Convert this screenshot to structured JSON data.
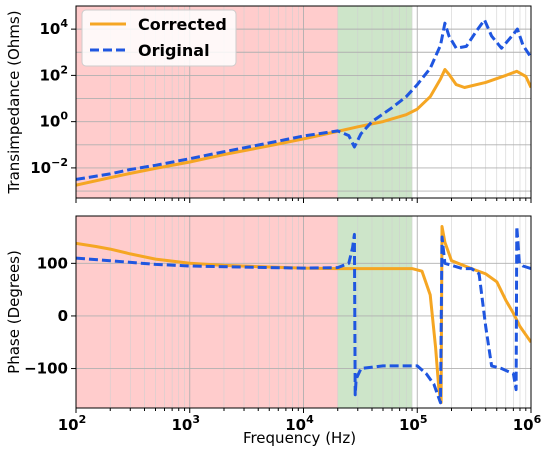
{
  "chart_data": [
    {
      "type": "line",
      "id": "magnitude",
      "xscale": "log",
      "yscale": "log",
      "xlim": [
        100,
        1000000
      ],
      "ylim": [
        0.0005,
        100000
      ],
      "xlabel": "",
      "ylabel": "Transimpedance (Ohms)",
      "grid": true,
      "legend": {
        "position": "top-left"
      },
      "bands": [
        {
          "from": 100,
          "to": 20000,
          "color": "#ffcccc"
        },
        {
          "from": 20000,
          "to": 90000,
          "color": "#cde5c9"
        }
      ],
      "yticks": [
        {
          "value": 0.01,
          "base": "10",
          "exp": "−2"
        },
        {
          "value": 1,
          "base": "10",
          "exp": "0"
        },
        {
          "value": 100,
          "base": "10",
          "exp": "2"
        },
        {
          "value": 10000,
          "base": "10",
          "exp": "4"
        }
      ],
      "series": [
        {
          "name": "Corrected",
          "color": "#f5a623",
          "dash": "solid",
          "points": [
            [
              100,
              0.0018
            ],
            [
              200,
              0.0038
            ],
            [
              300,
              0.0058
            ],
            [
              500,
              0.0095
            ],
            [
              1000,
              0.018
            ],
            [
              2000,
              0.038
            ],
            [
              5000,
              0.09
            ],
            [
              10000,
              0.18
            ],
            [
              20000,
              0.38
            ],
            [
              30000,
              0.6
            ],
            [
              50000,
              1.0
            ],
            [
              80000,
              2.0
            ],
            [
              100000,
              3.5
            ],
            [
              130000,
              12
            ],
            [
              160000,
              70
            ],
            [
              175000,
              180
            ],
            [
              190000,
              110
            ],
            [
              220000,
              40
            ],
            [
              260000,
              30
            ],
            [
              400000,
              50
            ],
            [
              600000,
              100
            ],
            [
              750000,
              150
            ],
            [
              900000,
              90
            ],
            [
              1000000,
              30
            ]
          ]
        },
        {
          "name": "Original",
          "color": "#1f56e0",
          "dash": "dashed",
          "points": [
            [
              100,
              0.0032
            ],
            [
              200,
              0.0055
            ],
            [
              300,
              0.0085
            ],
            [
              500,
              0.013
            ],
            [
              1000,
              0.025
            ],
            [
              2000,
              0.05
            ],
            [
              5000,
              0.12
            ],
            [
              10000,
              0.24
            ],
            [
              20000,
              0.4
            ],
            [
              25000,
              0.25
            ],
            [
              28000,
              0.08
            ],
            [
              32000,
              0.3
            ],
            [
              40000,
              1.0
            ],
            [
              60000,
              4.0
            ],
            [
              80000,
              12
            ],
            [
              100000,
              40
            ],
            [
              130000,
              200
            ],
            [
              160000,
              2000
            ],
            [
              175000,
              18000
            ],
            [
              190000,
              5000
            ],
            [
              220000,
              1500
            ],
            [
              270000,
              1800
            ],
            [
              330000,
              8000
            ],
            [
              390000,
              25000
            ],
            [
              450000,
              5000
            ],
            [
              550000,
              1500
            ],
            [
              700000,
              6000
            ],
            [
              760000,
              10000
            ],
            [
              850000,
              2000
            ],
            [
              1000000,
              600
            ]
          ]
        }
      ]
    },
    {
      "type": "line",
      "id": "phase",
      "xscale": "log",
      "xlim": [
        100,
        1000000
      ],
      "ylim": [
        -175,
        190
      ],
      "xlabel": "Frequency (Hz)",
      "ylabel": "Phase (Degrees)",
      "grid": true,
      "bands": [
        {
          "from": 100,
          "to": 20000,
          "color": "#ffcccc"
        },
        {
          "from": 20000,
          "to": 90000,
          "color": "#cde5c9"
        }
      ],
      "yticks": [
        {
          "value": 100,
          "label": "100"
        },
        {
          "value": 0,
          "label": "0"
        },
        {
          "value": -100,
          "label": "−100"
        }
      ],
      "xticks": [
        {
          "value": 100,
          "base": "10",
          "exp": "2"
        },
        {
          "value": 1000,
          "base": "10",
          "exp": "3"
        },
        {
          "value": 10000,
          "base": "10",
          "exp": "4"
        },
        {
          "value": 100000,
          "base": "10",
          "exp": "5"
        },
        {
          "value": 1000000,
          "base": "10",
          "exp": "6"
        }
      ],
      "series": [
        {
          "name": "Corrected",
          "color": "#f5a623",
          "dash": "solid",
          "points": [
            [
              100,
              138
            ],
            [
              150,
              132
            ],
            [
              200,
              127
            ],
            [
              300,
              118
            ],
            [
              500,
              108
            ],
            [
              1000,
              100
            ],
            [
              2000,
              96
            ],
            [
              5000,
              93
            ],
            [
              10000,
              91
            ],
            [
              20000,
              90
            ],
            [
              50000,
              90
            ],
            [
              90000,
              90
            ],
            [
              110000,
              85
            ],
            [
              130000,
              40
            ],
            [
              145000,
              -60
            ],
            [
              155000,
              -140
            ],
            [
              162000,
              -165
            ],
            [
              165000,
              170
            ],
            [
              175000,
              140
            ],
            [
              200000,
              105
            ],
            [
              300000,
              90
            ],
            [
              400000,
              80
            ],
            [
              500000,
              65
            ],
            [
              600000,
              30
            ],
            [
              700000,
              5
            ],
            [
              800000,
              -20
            ],
            [
              1000000,
              -50
            ]
          ]
        },
        {
          "name": "Original",
          "color": "#1f56e0",
          "dash": "dashed",
          "points": [
            [
              100,
              110
            ],
            [
              200,
              105
            ],
            [
              500,
              98
            ],
            [
              1000,
              95
            ],
            [
              5000,
              92
            ],
            [
              10000,
              91
            ],
            [
              20000,
              92
            ],
            [
              25000,
              100
            ],
            [
              27000,
              130
            ],
            [
              28000,
              155
            ],
            [
              28500,
              -150
            ],
            [
              29000,
              -120
            ],
            [
              32000,
              -100
            ],
            [
              50000,
              -95
            ],
            [
              80000,
              -95
            ],
            [
              100000,
              -95
            ],
            [
              120000,
              -110
            ],
            [
              140000,
              -130
            ],
            [
              160000,
              -165
            ],
            [
              165000,
              150
            ],
            [
              175000,
              100
            ],
            [
              250000,
              90
            ],
            [
              300000,
              90
            ],
            [
              350000,
              80
            ],
            [
              400000,
              -20
            ],
            [
              450000,
              -95
            ],
            [
              550000,
              -100
            ],
            [
              700000,
              -110
            ],
            [
              740000,
              -140
            ],
            [
              750000,
              170
            ],
            [
              790000,
              100
            ],
            [
              850000,
              95
            ],
            [
              1000000,
              90
            ]
          ]
        }
      ]
    }
  ]
}
